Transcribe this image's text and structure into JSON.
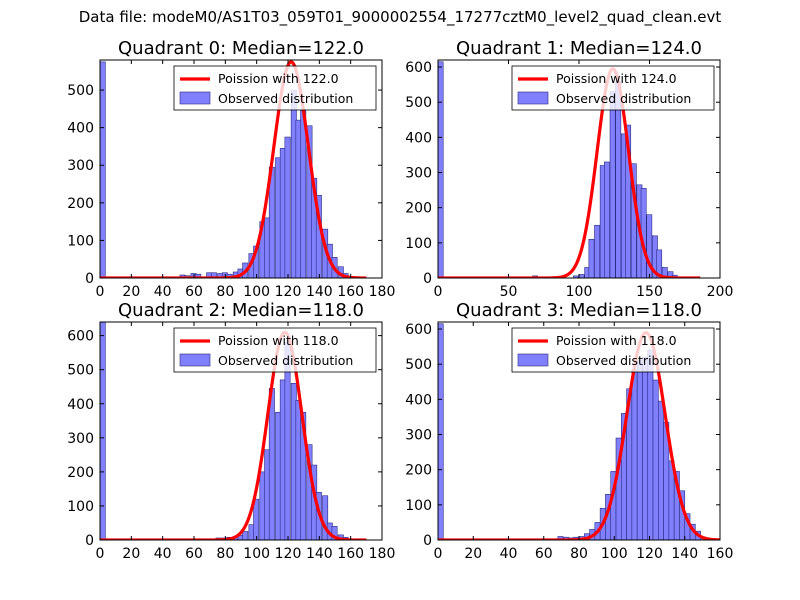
{
  "suptitle": "Data file: modeM0/AS1T03_059T01_9000002554_17277cztM0_level2_quad_clean.evt",
  "colors": {
    "bar_fill": "#8080ff",
    "bar_edge": "#2a2a80",
    "line": "#ff0000",
    "legend_edge": "#000000"
  },
  "chart_data": [
    {
      "type": "bar",
      "title": "Quadrant 0: Median=122.0",
      "legend": [
        "Poission with 122.0",
        "Observed distribution"
      ],
      "legend_loc": "upper right",
      "xlim": [
        0,
        180
      ],
      "ylim": [
        0,
        580
      ],
      "xticks": [
        0,
        20,
        40,
        60,
        80,
        100,
        120,
        140,
        160,
        180
      ],
      "yticks": [
        0,
        100,
        200,
        300,
        400,
        500
      ],
      "bin_width": 3.4,
      "bins": [
        [
          0,
          575
        ],
        [
          51,
          8
        ],
        [
          54,
          6
        ],
        [
          58,
          12
        ],
        [
          61,
          10
        ],
        [
          68,
          14
        ],
        [
          71,
          14
        ],
        [
          75,
          12
        ],
        [
          78,
          14
        ],
        [
          81,
          10
        ],
        [
          85,
          16
        ],
        [
          88,
          24
        ],
        [
          91,
          40
        ],
        [
          95,
          65
        ],
        [
          98,
          85
        ],
        [
          102,
          150
        ],
        [
          105,
          160
        ],
        [
          108,
          295
        ],
        [
          112,
          320
        ],
        [
          115,
          345
        ],
        [
          118,
          375
        ],
        [
          122,
          500
        ],
        [
          125,
          420
        ],
        [
          128,
          445
        ],
        [
          132,
          405
        ],
        [
          135,
          265
        ],
        [
          138,
          220
        ],
        [
          142,
          130
        ],
        [
          145,
          90
        ],
        [
          148,
          55
        ],
        [
          152,
          30
        ],
        [
          155,
          12
        ],
        [
          159,
          4
        ]
      ],
      "poisson_mean": 122.0,
      "poisson_peak": 575,
      "curve_range": [
        0,
        170
      ]
    },
    {
      "type": "bar",
      "title": "Quadrant 1: Median=124.0",
      "legend": [
        "Poission with 124.0",
        "Observed distribution"
      ],
      "legend_loc": "upper right",
      "xlim": [
        0,
        200
      ],
      "ylim": [
        0,
        620
      ],
      "xticks": [
        0,
        50,
        100,
        150,
        200
      ],
      "yticks": [
        0,
        100,
        200,
        300,
        400,
        500,
        600
      ],
      "bin_width": 3.7,
      "bins": [
        [
          0,
          615
        ],
        [
          67,
          6
        ],
        [
          96,
          6
        ],
        [
          100,
          10
        ],
        [
          104,
          30
        ],
        [
          107,
          110
        ],
        [
          111,
          150
        ],
        [
          115,
          320
        ],
        [
          118,
          330
        ],
        [
          122,
          530
        ],
        [
          126,
          560
        ],
        [
          130,
          410
        ],
        [
          133,
          435
        ],
        [
          137,
          325
        ],
        [
          141,
          265
        ],
        [
          144,
          255
        ],
        [
          148,
          180
        ],
        [
          152,
          120
        ],
        [
          155,
          80
        ],
        [
          159,
          30
        ],
        [
          163,
          18
        ],
        [
          166,
          8
        ]
      ],
      "poisson_mean": 124.0,
      "poisson_peak": 595,
      "curve_range": [
        0,
        186
      ]
    },
    {
      "type": "bar",
      "title": "Quadrant 2: Median=118.0",
      "legend": [
        "Poission with 118.0",
        "Observed distribution"
      ],
      "legend_loc": "upper right",
      "xlim": [
        0,
        180
      ],
      "ylim": [
        0,
        640
      ],
      "xticks": [
        0,
        20,
        40,
        60,
        80,
        100,
        120,
        140,
        160,
        180
      ],
      "yticks": [
        0,
        100,
        200,
        300,
        400,
        500,
        600
      ],
      "bin_width": 3.4,
      "bins": [
        [
          0,
          640
        ],
        [
          74,
          6
        ],
        [
          78,
          6
        ],
        [
          81,
          8
        ],
        [
          85,
          10
        ],
        [
          88,
          14
        ],
        [
          91,
          25
        ],
        [
          95,
          45
        ],
        [
          98,
          120
        ],
        [
          102,
          200
        ],
        [
          105,
          265
        ],
        [
          108,
          445
        ],
        [
          112,
          375
        ],
        [
          115,
          470
        ],
        [
          118,
          580
        ],
        [
          122,
          460
        ],
        [
          125,
          410
        ],
        [
          128,
          375
        ],
        [
          132,
          280
        ],
        [
          135,
          220
        ],
        [
          138,
          140
        ],
        [
          142,
          130
        ],
        [
          145,
          50
        ],
        [
          148,
          40
        ],
        [
          152,
          15
        ],
        [
          155,
          8
        ]
      ],
      "poisson_mean": 118.0,
      "poisson_peak": 610,
      "curve_range": [
        0,
        170
      ]
    },
    {
      "type": "bar",
      "title": "Quadrant 3: Median=118.0",
      "legend": [
        "Poission with 118.0",
        "Observed distribution"
      ],
      "legend_loc": "upper right",
      "xlim": [
        0,
        160
      ],
      "ylim": [
        0,
        620
      ],
      "xticks": [
        0,
        20,
        40,
        60,
        80,
        100,
        120,
        140,
        160
      ],
      "yticks": [
        0,
        100,
        200,
        300,
        400,
        500,
        600
      ],
      "bin_width": 3.0,
      "bins": [
        [
          0,
          615
        ],
        [
          68,
          10
        ],
        [
          71,
          8
        ],
        [
          74,
          6
        ],
        [
          77,
          8
        ],
        [
          80,
          10
        ],
        [
          83,
          18
        ],
        [
          86,
          30
        ],
        [
          89,
          50
        ],
        [
          92,
          90
        ],
        [
          95,
          130
        ],
        [
          98,
          195
        ],
        [
          101,
          290
        ],
        [
          104,
          360
        ],
        [
          107,
          430
        ],
        [
          110,
          485
        ],
        [
          113,
          510
        ],
        [
          116,
          520
        ],
        [
          119,
          540
        ],
        [
          122,
          455
        ],
        [
          125,
          395
        ],
        [
          128,
          335
        ],
        [
          131,
          225
        ],
        [
          134,
          195
        ],
        [
          137,
          140
        ],
        [
          140,
          75
        ],
        [
          143,
          45
        ],
        [
          146,
          25
        ],
        [
          149,
          8
        ]
      ],
      "poisson_mean": 118.0,
      "poisson_peak": 590,
      "curve_range": [
        0,
        160
      ]
    }
  ]
}
